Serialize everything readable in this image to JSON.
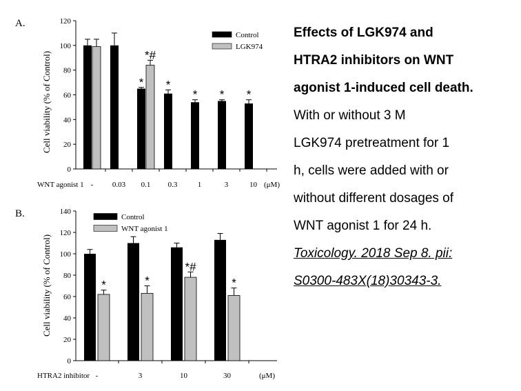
{
  "chart_data": [
    {
      "panel": "A.",
      "type": "bar",
      "ylabel": "Cell viability (% of Control)",
      "xlabel_prefix": "WNT agonist 1",
      "unit": "(μM)",
      "ylim": [
        0,
        120
      ],
      "yticks": [
        0,
        20,
        40,
        60,
        80,
        100,
        120
      ],
      "categories": [
        "-",
        "0.03",
        "0.1",
        "0.3",
        "1",
        "3",
        "10"
      ],
      "legend": "top-right",
      "series": [
        {
          "name": "Control",
          "color": "#000000",
          "values": [
            100,
            100,
            65,
            61,
            54,
            55,
            53
          ],
          "errors": [
            5,
            10,
            1,
            3,
            2,
            1,
            3
          ],
          "marks": [
            "",
            "",
            "*",
            "*",
            "*",
            "*",
            "*"
          ]
        },
        {
          "name": "LGK974",
          "color": "#c0c0c0",
          "values": [
            99,
            null,
            84,
            null,
            null,
            null,
            null
          ],
          "errors": [
            6,
            null,
            4,
            null,
            null,
            null,
            null
          ],
          "marks": [
            "",
            "",
            "*#",
            "",
            "",
            "",
            ""
          ]
        }
      ]
    },
    {
      "panel": "B.",
      "type": "bar",
      "ylabel": "Cell viability (% of Control)",
      "xlabel_prefix": "HTRA2 inhibitor",
      "unit": "(μM)",
      "ylim": [
        0,
        140
      ],
      "yticks": [
        0,
        20,
        40,
        60,
        80,
        100,
        120,
        140
      ],
      "categories": [
        "-",
        "3",
        "10",
        "30"
      ],
      "legend": "top-left",
      "series": [
        {
          "name": "Control",
          "color": "#000000",
          "values": [
            100,
            110,
            106,
            113
          ],
          "errors": [
            4,
            6,
            4,
            6
          ],
          "marks": [
            "",
            "",
            "",
            ""
          ]
        },
        {
          "name": "WNT agonist 1",
          "color": "#c0c0c0",
          "values": [
            62,
            63,
            78,
            61
          ],
          "errors": [
            4,
            7,
            5,
            7
          ],
          "marks": [
            "*",
            "*",
            "*#",
            "*"
          ]
        }
      ]
    }
  ],
  "caption": {
    "title_lines": [
      "Effects of LGK974 and",
      "HTRA2 inhibitors on WNT",
      "agonist 1-induced cell death."
    ],
    "body_lines": [
      "With or without 3  M",
      "LGK974 pretreatment for 1",
      "h, cells were added with or",
      "without different dosages of",
      "WNT agonist 1 for 24 h."
    ],
    "citation_lines": [
      "Toxicology. 2018 Sep 8. pii:",
      "S0300-483X(18)30343-3."
    ]
  }
}
